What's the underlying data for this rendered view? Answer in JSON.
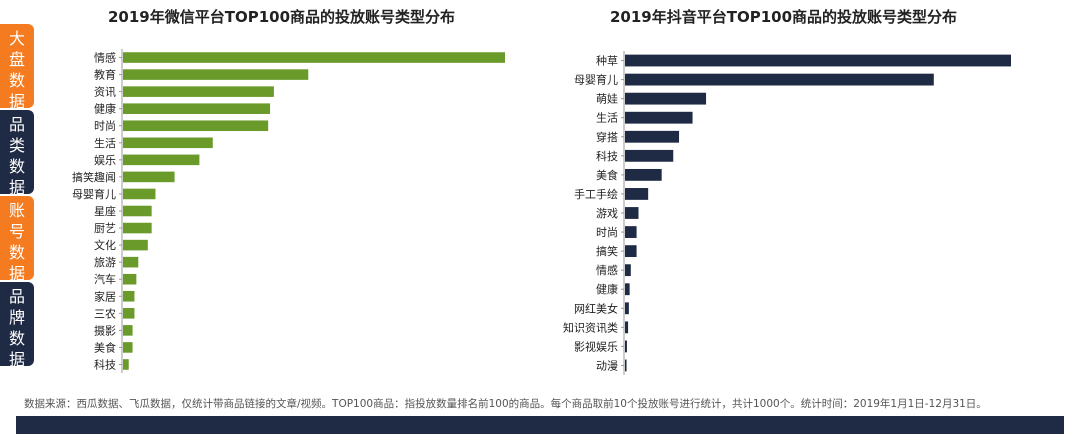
{
  "nav": {
    "items": [
      {
        "label": "大盘数据",
        "active": true
      },
      {
        "label": "品类数据",
        "active": false
      },
      {
        "label": "账号数据",
        "active": true
      },
      {
        "label": "品牌数据",
        "active": false
      }
    ]
  },
  "colors": {
    "orange": "#f47b20",
    "navy": "#1f2a44",
    "green": "#6a9a2a",
    "footer": "#1f2a44"
  },
  "chart_data": [
    {
      "type": "bar",
      "orientation": "horizontal",
      "title": "2019年微信平台TOP100商品的投放账号类型分布",
      "categories": [
        "情感",
        "教育",
        "资讯",
        "健康",
        "时尚",
        "生活",
        "娱乐",
        "搞笑趣闻",
        "母婴育儿",
        "星座",
        "厨艺",
        "文化",
        "旅游",
        "汽车",
        "家居",
        "三农",
        "摄影",
        "美食",
        "科技"
      ],
      "values": [
        100,
        48.5,
        39.5,
        38.5,
        38,
        23.5,
        20,
        13.5,
        8.5,
        7.5,
        7.5,
        6.5,
        4,
        3.5,
        3,
        3,
        2.5,
        2.5,
        1.5
      ],
      "xlim": [
        0,
        100
      ],
      "color": "#6a9a2a",
      "xlabel": "",
      "ylabel": "",
      "grid": false
    },
    {
      "type": "bar",
      "orientation": "horizontal",
      "title": "2019年抖音平台TOP100商品的投放账号类型分布",
      "categories": [
        "种草",
        "母婴育儿",
        "萌娃",
        "生活",
        "穿搭",
        "科技",
        "美食",
        "手工手绘",
        "游戏",
        "时尚",
        "搞笑",
        "情感",
        "健康",
        "网红美女",
        "知识资讯类",
        "影视娱乐",
        "动漫"
      ],
      "values": [
        100,
        80,
        21,
        17.5,
        14,
        12.5,
        9.5,
        6,
        3.5,
        3,
        3,
        1.5,
        1.2,
        1,
        0.8,
        0.5,
        0.4
      ],
      "xlim": [
        0,
        100
      ],
      "color": "#1f2a44",
      "xlabel": "",
      "ylabel": "",
      "grid": false
    }
  ],
  "footnote": "数据来源：西瓜数据、飞瓜数据，仅统计带商品链接的文章/视频。TOP100商品：指投放数量排名前100的商品。每个商品取前10个投放账号进行统计，共计1000个。统计时间：2019年1月1日-12月31日。"
}
